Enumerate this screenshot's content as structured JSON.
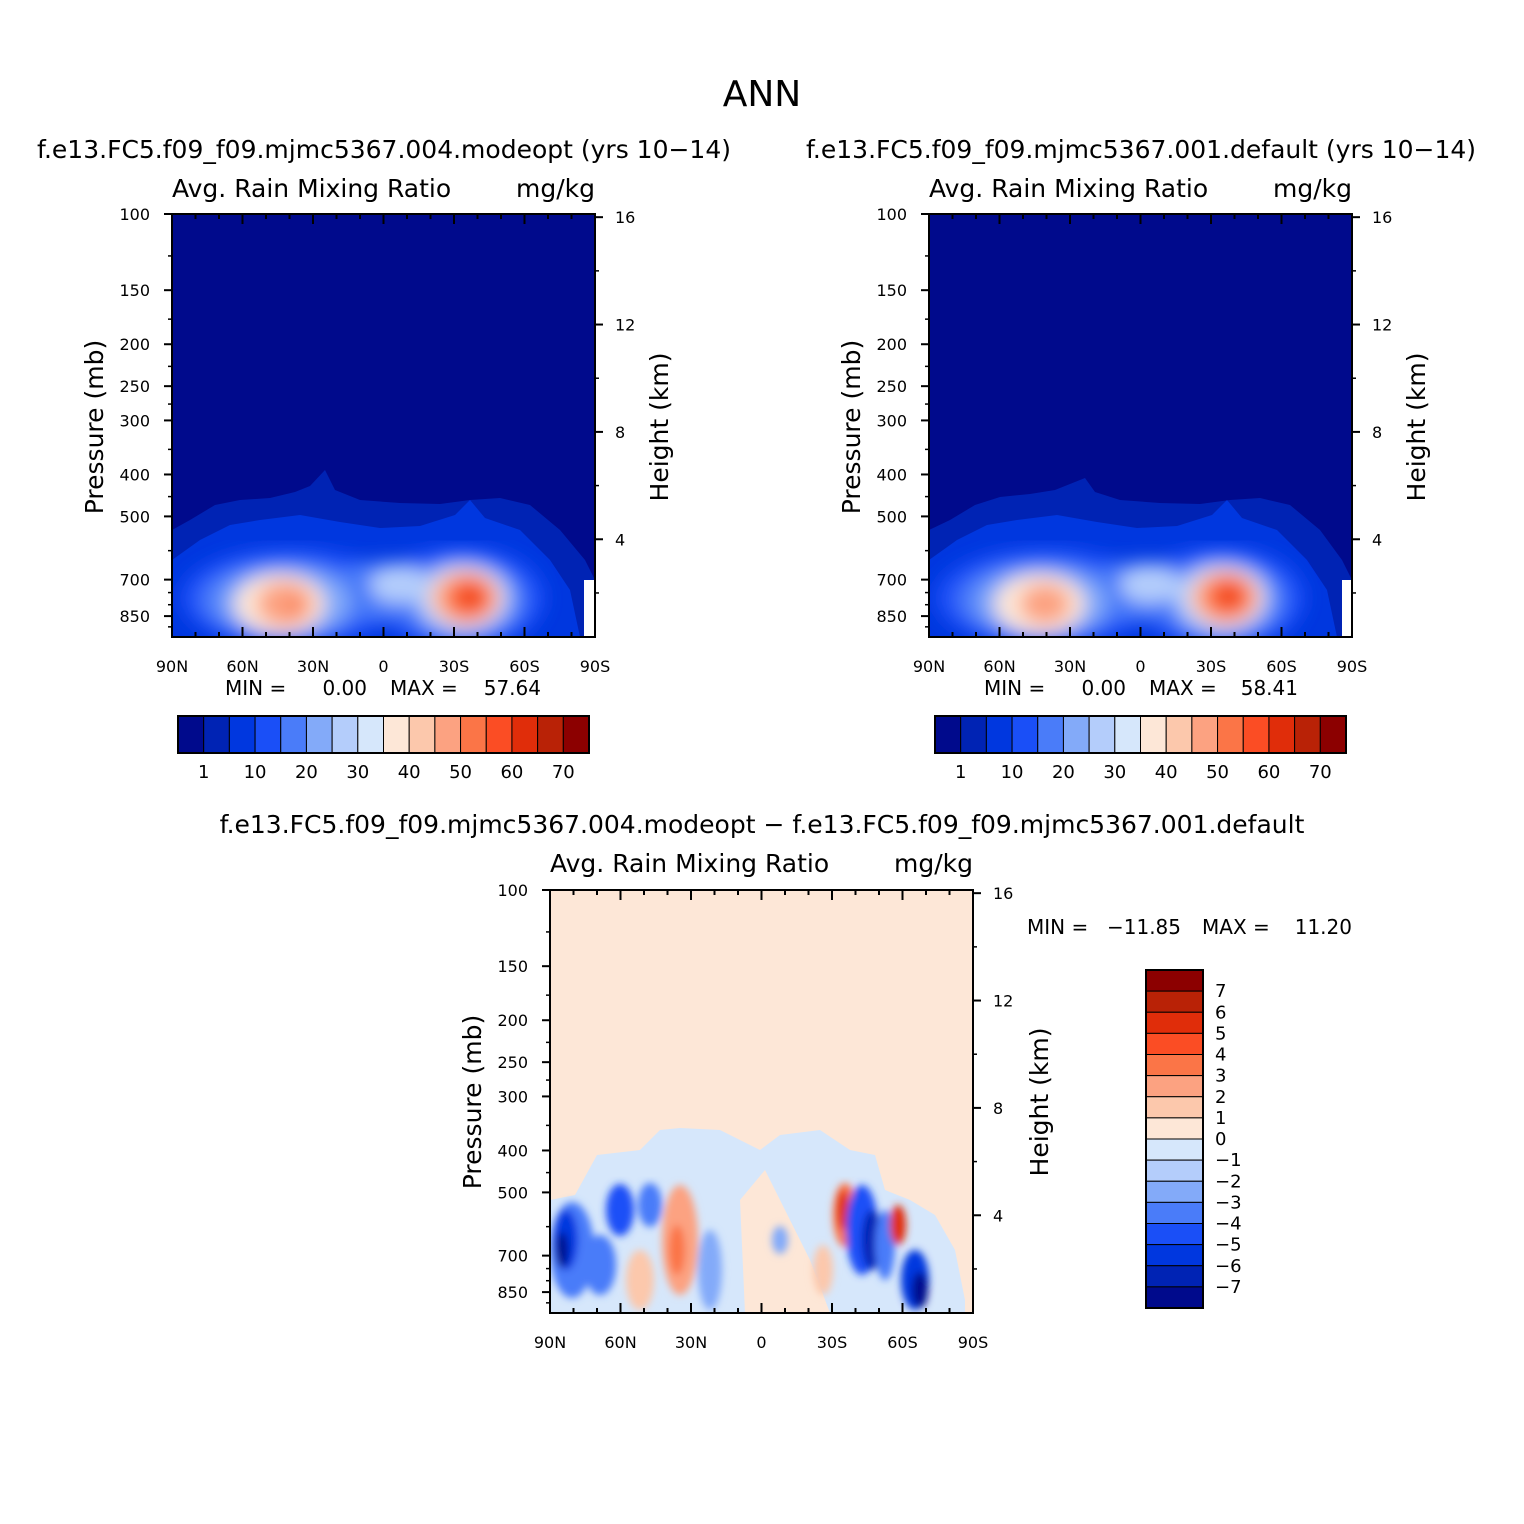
{
  "figure": {
    "title": "ANN"
  },
  "chart_data": [
    {
      "type": "heatmap",
      "title": "f.e13.FC5.f09_f09.mjmc5367.004.modeopt (yrs 10−14)",
      "left_string": "Avg. Rain Mixing Ratio",
      "right_string": "mg/kg",
      "xlabel": "",
      "ylabel": "Pressure (mb)",
      "y2label": "Height (km)",
      "x_ticks": [
        "90N",
        "60N",
        "30N",
        "0",
        "30S",
        "60S",
        "90S"
      ],
      "x_range": [
        90,
        -90
      ],
      "y_ticks": [
        100,
        150,
        200,
        250,
        300,
        400,
        500,
        700,
        850
      ],
      "y_range": [
        100,
        950
      ],
      "y_scale": "log",
      "y2_ticks": [
        16,
        12,
        8,
        4
      ],
      "min_label": "MIN =",
      "min_value": "0.00",
      "max_label": "MAX =",
      "max_value": "57.64",
      "colorbar_labels": [
        "1",
        "10",
        "20",
        "30",
        "40",
        "50",
        "60",
        "70"
      ],
      "colorbar_orientation": "horizontal",
      "cells": [
        {
          "lat": 50,
          "p": 750,
          "value": 40
        },
        {
          "lat": 40,
          "p": 750,
          "value": 45
        },
        {
          "lat": 35,
          "p": 800,
          "value": 50
        },
        {
          "lat": -30,
          "p": 730,
          "value": 50
        },
        {
          "lat": -35,
          "p": 740,
          "value": 55
        },
        {
          "lat": -38,
          "p": 760,
          "value": 57.64
        },
        {
          "lat": 10,
          "p": 650,
          "value": 30
        },
        {
          "lat": 0,
          "p": 700,
          "value": 25
        },
        {
          "lat": -60,
          "p": 700,
          "value": 15
        }
      ]
    },
    {
      "type": "heatmap",
      "title": "f.e13.FC5.f09_f09.mjmc5367.001.default (yrs 10−14)",
      "left_string": "Avg. Rain Mixing Ratio",
      "right_string": "mg/kg",
      "xlabel": "",
      "ylabel": "Pressure (mb)",
      "y2label": "Height (km)",
      "x_ticks": [
        "90N",
        "60N",
        "30N",
        "0",
        "30S",
        "60S",
        "90S"
      ],
      "x_range": [
        90,
        -90
      ],
      "y_ticks": [
        100,
        150,
        200,
        250,
        300,
        400,
        500,
        700,
        850
      ],
      "y_range": [
        100,
        950
      ],
      "y_scale": "log",
      "y2_ticks": [
        16,
        12,
        8,
        4
      ],
      "min_label": "MIN =",
      "min_value": "0.00",
      "max_label": "MAX =",
      "max_value": "58.41",
      "colorbar_labels": [
        "1",
        "10",
        "20",
        "30",
        "40",
        "50",
        "60",
        "70"
      ],
      "colorbar_orientation": "horizontal",
      "cells": [
        {
          "lat": 50,
          "p": 750,
          "value": 40
        },
        {
          "lat": 40,
          "p": 750,
          "value": 45
        },
        {
          "lat": -30,
          "p": 730,
          "value": 50
        },
        {
          "lat": -35,
          "p": 740,
          "value": 55
        },
        {
          "lat": -38,
          "p": 760,
          "value": 58.41
        },
        {
          "lat": 10,
          "p": 650,
          "value": 30
        },
        {
          "lat": 0,
          "p": 700,
          "value": 25
        },
        {
          "lat": -60,
          "p": 700,
          "value": 15
        }
      ]
    },
    {
      "type": "heatmap",
      "title": "f.e13.FC5.f09_f09.mjmc5367.004.modeopt − f.e13.FC5.f09_f09.mjmc5367.001.default",
      "left_string": "Avg. Rain Mixing Ratio",
      "right_string": "mg/kg",
      "xlabel": "",
      "ylabel": "Pressure (mb)",
      "y2label": "Height (km)",
      "x_ticks": [
        "90N",
        "60N",
        "30N",
        "0",
        "30S",
        "60S",
        "90S"
      ],
      "x_range": [
        90,
        -90
      ],
      "y_ticks": [
        100,
        150,
        200,
        250,
        300,
        400,
        500,
        700,
        850
      ],
      "y_range": [
        100,
        950
      ],
      "y_scale": "log",
      "y2_ticks": [
        16,
        12,
        8,
        4
      ],
      "min_label": "MIN =",
      "min_value": "−11.85",
      "max_label": "MAX =",
      "max_value": "11.20",
      "colorbar_labels": [
        "7",
        "6",
        "5",
        "4",
        "3",
        "2",
        "1",
        "0",
        "−1",
        "−2",
        "−3",
        "−4",
        "−5",
        "−6",
        "−7"
      ],
      "colorbar_orientation": "vertical",
      "cells": [
        {
          "lat": 83,
          "p": 620,
          "value": -7
        },
        {
          "lat": 60,
          "p": 520,
          "value": -5
        },
        {
          "lat": 30,
          "p": 650,
          "value": 4
        },
        {
          "lat": -35,
          "p": 540,
          "value": 7
        },
        {
          "lat": -42,
          "p": 600,
          "value": -6
        },
        {
          "lat": -58,
          "p": 600,
          "value": 6
        },
        {
          "lat": -67,
          "p": 780,
          "value": -6
        },
        {
          "lat": 0,
          "p": 700,
          "value": -1
        },
        {
          "lat": 45,
          "p": 800,
          "value": 2
        }
      ]
    }
  ],
  "colors": {
    "rain_scale": [
      "#000a8c",
      "#0023b4",
      "#0037df",
      "#1a4ff7",
      "#4a7cf9",
      "#83aaf9",
      "#b4cdfb",
      "#d6e7fb",
      "#fde7d7",
      "#fcc8ac",
      "#fca281",
      "#fb7547",
      "#fb4d24",
      "#e02d0a",
      "#b92206",
      "#8c0000"
    ],
    "diff_scale": [
      "#8c0000",
      "#b92206",
      "#e02d0a",
      "#fb4d24",
      "#fb7547",
      "#fca281",
      "#fcc8ac",
      "#fde7d7",
      "#d6e7fb",
      "#b4cdfb",
      "#83aaf9",
      "#4a7cf9",
      "#1a4ff7",
      "#0037df",
      "#0023b4",
      "#000a8c"
    ]
  }
}
